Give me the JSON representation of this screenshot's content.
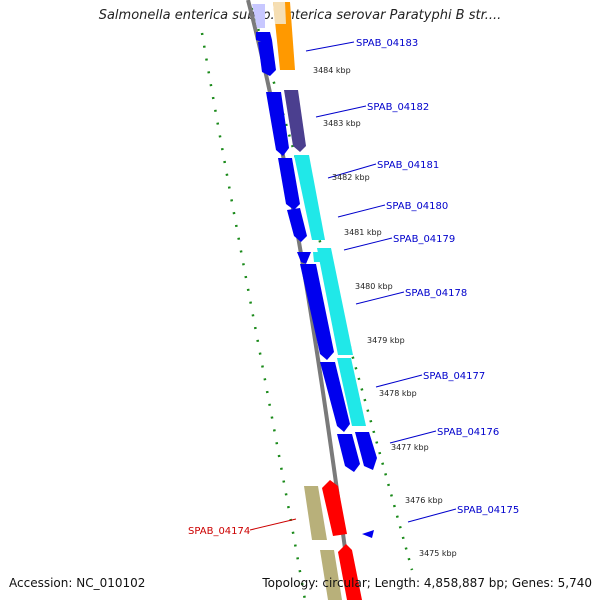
{
  "title": "Salmonella enterica subsp. enterica serovar Paratyphi B str....",
  "accession": "Accession: NC_010102",
  "summary": "Topology: circular; Length: 4,858,887 bp; Genes: 5,740",
  "colors": {
    "backbone": "#7a7a7a",
    "scale": "#1a8a1a",
    "gene_forward": "#0000ee",
    "gene_reverse": "#ff0000",
    "orange": "#ff9900",
    "purple": "#4b3f8f",
    "cyan": "#20e8e8",
    "khaki": "#b8b07a",
    "label_blue": "#0000cc",
    "label_red": "#cc0000"
  },
  "genes": [
    {
      "id": "SPAB_04183",
      "color": "#0000cc"
    },
    {
      "id": "SPAB_04182",
      "color": "#0000cc"
    },
    {
      "id": "SPAB_04181",
      "color": "#0000cc"
    },
    {
      "id": "SPAB_04180",
      "color": "#0000cc"
    },
    {
      "id": "SPAB_04179",
      "color": "#0000cc"
    },
    {
      "id": "SPAB_04178",
      "color": "#0000cc"
    },
    {
      "id": "SPAB_04177",
      "color": "#0000cc"
    },
    {
      "id": "SPAB_04176",
      "color": "#0000cc"
    },
    {
      "id": "SPAB_04175",
      "color": "#0000cc"
    },
    {
      "id": "SPAB_04174",
      "color": "#cc0000"
    }
  ],
  "ticks": [
    "3484 kbp",
    "3483 kbp",
    "3482 kbp",
    "3481 kbp",
    "3480 kbp",
    "3479 kbp",
    "3478 kbp",
    "3477 kbp",
    "3476 kbp",
    "3475 kbp"
  ]
}
